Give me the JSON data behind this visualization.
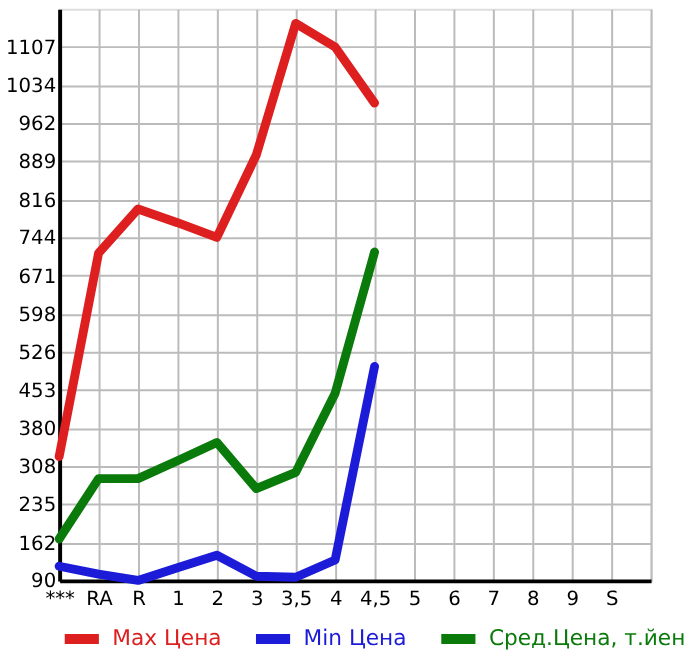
{
  "chart_data": {
    "type": "line",
    "categories": [
      "***",
      "RA",
      "R",
      "1",
      "2",
      "3",
      "3,5",
      "4",
      "4,5",
      "5",
      "6",
      "7",
      "8",
      "9",
      "S"
    ],
    "series": [
      {
        "name": "Max Цена",
        "color": "#dd1f1f",
        "values": [
          326,
          714,
          798,
          772,
          744,
          901,
          1152,
          1107,
          1000,
          null,
          null,
          null,
          null,
          null,
          null
        ]
      },
      {
        "name": "Min Цена",
        "color": "#1c1cd8",
        "values": [
          117,
          102,
          90,
          114,
          138,
          98,
          96,
          129,
          498,
          null,
          null,
          null,
          null,
          null,
          null
        ]
      },
      {
        "name": "Сред.Цена, т.йен",
        "color": "#0a7a0a",
        "values": [
          169,
          284,
          284,
          318,
          353,
          265,
          296,
          447,
          716,
          null,
          null,
          null,
          null,
          null,
          null
        ]
      }
    ],
    "ylim": [
      90,
      1180
    ],
    "yticks": [
      90,
      162,
      235,
      308,
      380,
      453,
      526,
      598,
      671,
      744,
      816,
      889,
      962,
      1034,
      1107
    ],
    "grid": true,
    "legend": "bottom",
    "marker": "none",
    "line_style": "solid"
  }
}
